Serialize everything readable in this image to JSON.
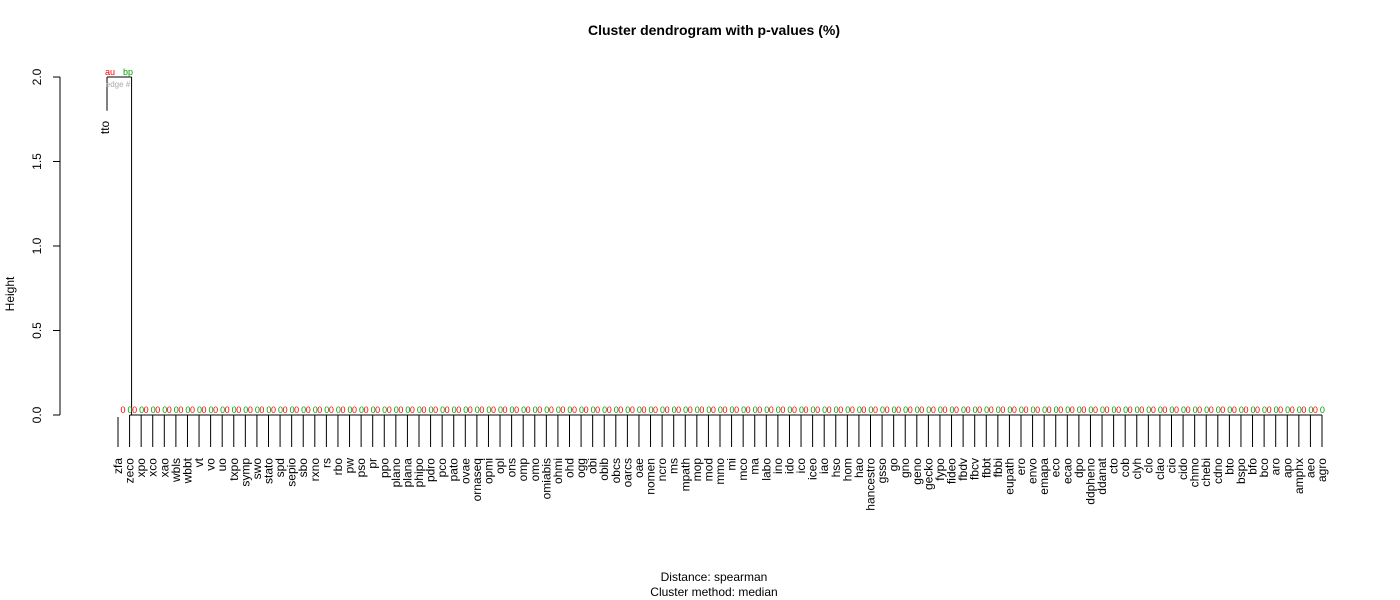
{
  "chart_data": {
    "type": "dendrogram",
    "title": "Cluster dendrogram with p-values (%)",
    "ylabel": "Height",
    "footer": [
      "Distance: spearman",
      "Cluster method: median"
    ],
    "ylim": [
      0,
      2
    ],
    "yticks": [
      "0.0",
      "0.5",
      "1.0",
      "1.5",
      "2.0"
    ],
    "top_labels": {
      "au": "au",
      "bp": "bp",
      "edge": "edge #"
    },
    "colors": {
      "au": "#ff0000",
      "bp": "#00a000",
      "edge": "#a9a9a9",
      "line": "#000000"
    },
    "leaves": [
      "zfa",
      "zeco",
      "xpo",
      "xco",
      "xao",
      "wbls",
      "wbbt",
      "vt",
      "vo",
      "uo",
      "txpo",
      "symp",
      "swo",
      "stato",
      "spd",
      "sepio",
      "sbo",
      "rxno",
      "rs",
      "rbo",
      "pw",
      "pso",
      "pr",
      "ppo",
      "plano",
      "plana",
      "phipo",
      "pdro",
      "pco",
      "pato",
      "ovae",
      "ornaseq",
      "opmi",
      "opl",
      "ons",
      "omp",
      "omo",
      "omiabis",
      "ohmi",
      "ohd",
      "ogg",
      "obi",
      "obib",
      "obcs",
      "oarcs",
      "oae",
      "nomen",
      "ncro",
      "ms",
      "mpath",
      "mop",
      "mod",
      "mmo",
      "mi",
      "mco",
      "ma",
      "labo",
      "ino",
      "ido",
      "ico",
      "iceo",
      "iao",
      "hso",
      "hom",
      "hao",
      "hancestro",
      "gsso",
      "go",
      "gno",
      "geno",
      "gecko",
      "fypo",
      "fideo",
      "fbdv",
      "fbcv",
      "fbbt",
      "fbbi",
      "eupath",
      "ero",
      "envo",
      "emapa",
      "eco",
      "ecao",
      "dpo",
      "ddpheno",
      "ddanat",
      "cto",
      "cob",
      "clyh",
      "clo",
      "clao",
      "cio",
      "cido",
      "chmo",
      "chebi",
      "cdno",
      "bto",
      "bspo",
      "bfo",
      "bco",
      "aro",
      "apo",
      "amphx",
      "aeo",
      "agro"
    ],
    "outlier_leaf": "tto",
    "merge_heights": {
      "tto_with_zfa": 1.8,
      "root": 2.0,
      "others": 0.0
    },
    "au_values": [
      0,
      0,
      0,
      0,
      0,
      0,
      0,
      0,
      0,
      0,
      0,
      0,
      0,
      0,
      0,
      0,
      0,
      0,
      0,
      0,
      0,
      0,
      0,
      0,
      0,
      0,
      0,
      0,
      0,
      0,
      0,
      0,
      0,
      0,
      0,
      0,
      0,
      0,
      0,
      0,
      0,
      0,
      0,
      0,
      0,
      0,
      0,
      0,
      0,
      0,
      0,
      0,
      0,
      0,
      0,
      0,
      0,
      0,
      0,
      0,
      0,
      0,
      0,
      0,
      0,
      0,
      0,
      0,
      0,
      0,
      0,
      0,
      0,
      0,
      0,
      0,
      0,
      0,
      0,
      0,
      0,
      0,
      0,
      0,
      0,
      0,
      0,
      0,
      0,
      0,
      0,
      0,
      0,
      0,
      0,
      0,
      0,
      0,
      0,
      0,
      0,
      0,
      0,
      0
    ],
    "bp_values": [
      0,
      0,
      0,
      0,
      0,
      0,
      0,
      0,
      0,
      0,
      0,
      0,
      0,
      0,
      0,
      0,
      0,
      0,
      0,
      0,
      0,
      0,
      0,
      0,
      0,
      0,
      0,
      0,
      0,
      0,
      0,
      0,
      0,
      0,
      0,
      0,
      0,
      0,
      0,
      0,
      0,
      0,
      0,
      0,
      0,
      0,
      0,
      0,
      0,
      0,
      0,
      0,
      0,
      0,
      0,
      0,
      0,
      0,
      0,
      0,
      0,
      0,
      0,
      0,
      0,
      0,
      0,
      0,
      0,
      0,
      0,
      0,
      0,
      0,
      0,
      0,
      0,
      0,
      0,
      0,
      0,
      0,
      0,
      0,
      0,
      0,
      0,
      0,
      0,
      0,
      0,
      0,
      0,
      0,
      0,
      0,
      0,
      0,
      0,
      0,
      0,
      0,
      0,
      0
    ]
  }
}
